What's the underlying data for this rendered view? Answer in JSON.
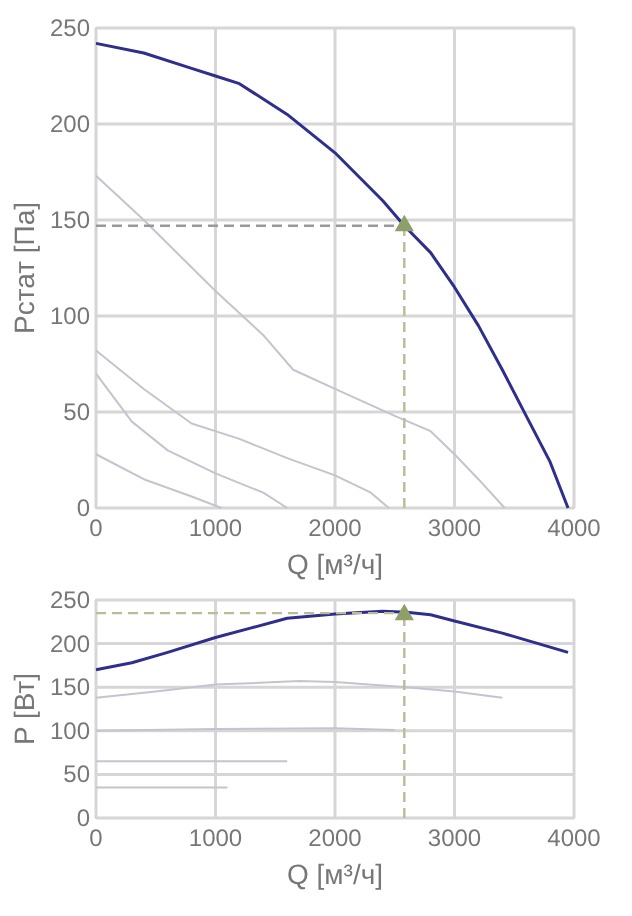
{
  "chart_data": [
    {
      "type": "line",
      "xlabel": "Q [м³/ч]",
      "ylabel": "Pстат [Па]",
      "xlim": [
        0,
        4000
      ],
      "ylim": [
        0,
        250
      ],
      "xticks": [
        0,
        1000,
        2000,
        3000,
        4000
      ],
      "yticks": [
        0,
        50,
        100,
        150,
        200,
        250
      ],
      "grid": true,
      "marker": "none",
      "line_style": "solid",
      "series": [
        {
          "color": "#2e2e8c",
          "x": [
            0,
            400,
            800,
            1000,
            1200,
            1600,
            2000,
            2400,
            2580,
            2800,
            3000,
            3200,
            3400,
            3600,
            3800,
            3950
          ],
          "values": [
            242,
            237,
            229,
            225,
            221,
            205,
            185,
            160,
            147,
            133,
            115,
            95,
            72,
            48,
            24,
            0
          ]
        },
        {
          "color": "#c4c4d0",
          "x": [
            0,
            400,
            1000,
            1400,
            1650,
            2000,
            2500,
            2800,
            3000,
            3200,
            3420
          ],
          "values": [
            173,
            150,
            113,
            90,
            72,
            62,
            48,
            40,
            28,
            15,
            0
          ]
        },
        {
          "color": "#c4c4d0",
          "x": [
            0,
            400,
            800,
            1200,
            1600,
            2000,
            2300,
            2450
          ],
          "values": [
            82,
            62,
            44,
            36,
            26,
            17,
            8,
            0
          ]
        },
        {
          "color": "#c4c4d0",
          "x": [
            0,
            300,
            600,
            1000,
            1400,
            1600
          ],
          "values": [
            70,
            45,
            30,
            18,
            8,
            0
          ]
        },
        {
          "color": "#c4c4d0",
          "x": [
            0,
            400,
            800,
            1050
          ],
          "values": [
            28,
            15,
            6,
            0
          ]
        },
        {
          "type": "scatter",
          "marker": "triangle",
          "color": "#8f9f6a",
          "x": [
            2580
          ],
          "values": [
            147
          ]
        }
      ],
      "ref_lines": [
        {
          "axis": "y",
          "value": 147,
          "color": "#999999",
          "line_style": "dashed"
        },
        {
          "axis": "x",
          "value": 2580,
          "color": "#b8bc98",
          "line_style": "dashed"
        }
      ]
    },
    {
      "type": "line",
      "xlabel": "Q [м³/ч]",
      "ylabel": "P [Вт]",
      "xlim": [
        0,
        4000
      ],
      "ylim": [
        0,
        250
      ],
      "xticks": [
        0,
        1000,
        2000,
        3000,
        4000
      ],
      "yticks": [
        0,
        50,
        100,
        150,
        200,
        250
      ],
      "grid": true,
      "marker": "none",
      "line_style": "solid",
      "series": [
        {
          "color": "#2e2e8c",
          "x": [
            0,
            300,
            600,
            1000,
            1300,
            1600,
            2000,
            2400,
            2600,
            2800,
            3000,
            3400,
            3950
          ],
          "values": [
            170,
            178,
            190,
            207,
            218,
            229,
            234,
            237,
            236,
            233,
            226,
            212,
            190
          ]
        },
        {
          "color": "#c4c4d0",
          "x": [
            0,
            500,
            1000,
            1700,
            2000,
            2600,
            3000,
            3400
          ],
          "values": [
            138,
            145,
            153,
            157,
            156,
            150,
            145,
            138
          ]
        },
        {
          "color": "#c4c4d0",
          "x": [
            0,
            1000,
            2000,
            2500
          ],
          "values": [
            100,
            102,
            103,
            101
          ]
        },
        {
          "color": "#c4c4d0",
          "x": [
            0,
            1600
          ],
          "values": [
            65,
            65
          ]
        },
        {
          "color": "#c4c4d0",
          "x": [
            0,
            1100
          ],
          "values": [
            35,
            35
          ]
        },
        {
          "type": "scatter",
          "marker": "triangle",
          "color": "#8f9f6a",
          "x": [
            2580
          ],
          "values": [
            233
          ]
        }
      ],
      "ref_lines": [
        {
          "axis": "y",
          "value": 235,
          "color": "#b8bc98",
          "line_style": "dashed"
        },
        {
          "axis": "x",
          "value": 2580,
          "color": "#b8bc98",
          "line_style": "dashed"
        }
      ]
    }
  ]
}
